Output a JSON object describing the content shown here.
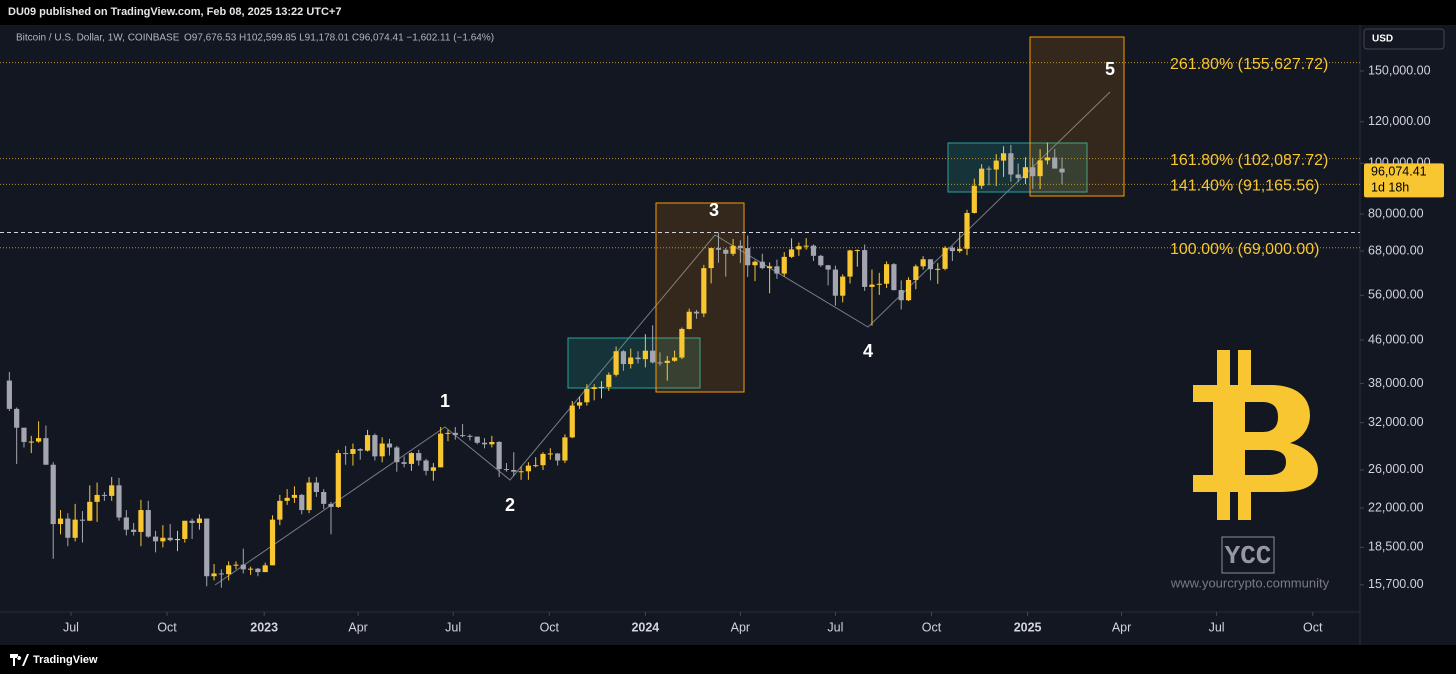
{
  "header": {
    "publisher": "DU09 published on TradingView.com, Feb 08, 2025 13:22 UTC+7"
  },
  "chart_data": {
    "type": "candlestick",
    "symbol": "Bitcoin / U.S. Dollar, 1W, COINBASE",
    "ohlc_text": "O97,676.53 H102,599.85 L91,178.01 C96,074.41 −1,602.11 (−1.64%)",
    "currency": "USD",
    "log_scale": true,
    "grid": false,
    "up_color": "#f7c631",
    "down_color": "#a3a6af",
    "open": [
      38500,
      34000,
      31300,
      29400,
      29450,
      29900,
      26600,
      20500,
      21000,
      19300,
      20900,
      20800,
      22600,
      23300,
      23200,
      24300,
      21100,
      20000,
      19800,
      21800,
      19400,
      19000,
      19300,
      19100,
      19200,
      20800,
      20600,
      21000,
      16300,
      16500,
      16450,
      17100,
      17150,
      16800,
      16850,
      16600,
      17100,
      20900,
      22700,
      23000,
      23300,
      21800,
      24600,
      23600,
      22400,
      22100,
      28000,
      27900,
      28500,
      28300,
      30300,
      27600,
      29200,
      28700,
      26900,
      26700,
      28000,
      27100,
      25900,
      26300,
      30500,
      30600,
      30300,
      30200,
      30100,
      29300,
      29100,
      29400,
      26100,
      26000,
      25800,
      25850,
      26500,
      26550,
      27900,
      27950,
      27100,
      30000,
      34500,
      35000,
      37100,
      37400,
      37450,
      39500,
      43800,
      41400,
      42600,
      42300,
      43900,
      41700,
      41600,
      42000,
      42600,
      48300,
      52100,
      51700,
      63100,
      68900,
      68400,
      67200,
      69600,
      68900,
      63900,
      64900,
      63100,
      63600,
      61600,
      66300,
      68500,
      69500,
      69650,
      66600,
      63900,
      62700,
      55900,
      60800,
      68200,
      68300,
      58100,
      58700,
      58900,
      64200,
      57300,
      54800,
      59900,
      63600,
      65600,
      62800,
      62900,
      69000,
      68000,
      68700,
      80400,
      90600,
      97700,
      97300,
      101200,
      104500,
      95200,
      93700,
      98300,
      94500,
      101300,
      102600,
      97676.53
    ],
    "high": [
      40000,
      34200,
      31300,
      30200,
      32200,
      31600,
      26900,
      21800,
      21500,
      22400,
      21700,
      24300,
      24600,
      23600,
      25200,
      25100,
      21800,
      20600,
      22800,
      22700,
      19900,
      20400,
      20500,
      19900,
      19700,
      21000,
      21400,
      21000,
      17200,
      16800,
      17400,
      17400,
      18400,
      17000,
      16900,
      17300,
      21300,
      23300,
      23900,
      24200,
      23400,
      25200,
      25200,
      23900,
      22600,
      28400,
      28900,
      29200,
      28600,
      31000,
      30500,
      30000,
      29800,
      28900,
      27600,
      28100,
      28400,
      27300,
      26800,
      31400,
      31000,
      31400,
      31800,
      30400,
      30100,
      29900,
      30200,
      29500,
      26800,
      28100,
      26400,
      26900,
      27500,
      28100,
      28600,
      28000,
      30400,
      35200,
      35900,
      37900,
      37900,
      38400,
      39900,
      44700,
      44000,
      44300,
      43800,
      47200,
      49100,
      43600,
      42900,
      43900,
      48600,
      52800,
      52500,
      64000,
      69000,
      73800,
      68900,
      71700,
      71300,
      72800,
      65300,
      67200,
      64700,
      65500,
      67700,
      71900,
      70600,
      72000,
      70000,
      66900,
      64000,
      63800,
      61400,
      68400,
      68500,
      70000,
      62700,
      61800,
      65000,
      64500,
      59800,
      60600,
      64100,
      66500,
      65600,
      64500,
      69500,
      69500,
      73600,
      81500,
      93500,
      99600,
      98700,
      104100,
      107800,
      108400,
      99900,
      102700,
      102500,
      106400,
      109600,
      106500,
      102599.85
    ],
    "low": [
      33700,
      26700,
      28700,
      28000,
      29300,
      26600,
      17600,
      19600,
      18600,
      19000,
      18900,
      20800,
      20700,
      22700,
      22700,
      20800,
      19500,
      19500,
      18600,
      19300,
      18100,
      18500,
      19000,
      18200,
      18900,
      19200,
      20000,
      15600,
      16000,
      15500,
      16000,
      16800,
      16500,
      16400,
      16300,
      16600,
      17100,
      20400,
      22300,
      22500,
      21400,
      21500,
      23100,
      21900,
      19600,
      22000,
      26600,
      26500,
      27200,
      28200,
      27100,
      26900,
      27700,
      25800,
      26300,
      25900,
      26500,
      25400,
      24800,
      26300,
      29500,
      29700,
      30000,
      29600,
      29100,
      28600,
      28700,
      25200,
      25800,
      25300,
      24900,
      24900,
      26300,
      26000,
      27200,
      26500,
      26800,
      29900,
      34000,
      34500,
      35300,
      35600,
      36800,
      39200,
      40200,
      40600,
      41500,
      40800,
      41500,
      41100,
      38500,
      41800,
      42300,
      48200,
      50500,
      50900,
      59000,
      64600,
      60800,
      66600,
      64500,
      60700,
      59600,
      62800,
      56500,
      60200,
      60800,
      66000,
      66600,
      68400,
      65100,
      63400,
      58500,
      53500,
      54300,
      59000,
      63500,
      57100,
      49000,
      56100,
      57800,
      57200,
      52600,
      54600,
      57500,
      62700,
      59800,
      58900,
      62500,
      65100,
      67500,
      66800,
      80200,
      89400,
      90800,
      90500,
      94200,
      92200,
      92000,
      91300,
      89300,
      89300,
      99500,
      97800,
      91178.01
    ],
    "close": [
      34000,
      31300,
      29400,
      29450,
      29900,
      26600,
      20500,
      21000,
      19300,
      20900,
      20800,
      22600,
      23300,
      23200,
      24300,
      21100,
      20000,
      19800,
      21800,
      19400,
      19000,
      19300,
      19100,
      19200,
      20800,
      20600,
      21000,
      16300,
      16500,
      16450,
      17100,
      17150,
      16800,
      16850,
      16600,
      17100,
      20900,
      22700,
      23000,
      23300,
      21800,
      24600,
      23600,
      22400,
      22100,
      28000,
      27900,
      28500,
      28300,
      30300,
      27600,
      29200,
      28700,
      26900,
      26700,
      28000,
      27100,
      25900,
      26300,
      30500,
      30600,
      30300,
      30200,
      30100,
      29300,
      29100,
      29400,
      26100,
      26000,
      25800,
      25850,
      26500,
      26550,
      27900,
      27950,
      27100,
      30000,
      34500,
      35000,
      37100,
      37400,
      37450,
      39500,
      43800,
      41400,
      42600,
      42300,
      43900,
      41700,
      41600,
      42000,
      42600,
      48300,
      52100,
      51700,
      63100,
      68900,
      68400,
      67200,
      69600,
      68900,
      63900,
      64900,
      63100,
      63600,
      61600,
      66300,
      68500,
      69500,
      69650,
      66600,
      63900,
      62700,
      55900,
      60800,
      68200,
      68300,
      58100,
      58700,
      58900,
      64200,
      57300,
      54800,
      59900,
      63600,
      65600,
      62800,
      62900,
      69000,
      68000,
      68700,
      80400,
      90600,
      97700,
      97300,
      101200,
      104500,
      95200,
      93700,
      98300,
      94500,
      101300,
      102600,
      97700,
      96074.41
    ],
    "xlim": [
      -1.28,
      184.76
    ],
    "xticks": [
      {
        "value": 8.43,
        "label": "Jul"
      },
      {
        "value": 21.57,
        "label": "Oct"
      },
      {
        "value": 34.86,
        "label": "2023"
      },
      {
        "value": 47.71,
        "label": "Apr"
      },
      {
        "value": 60.71,
        "label": "Jul"
      },
      {
        "value": 73.86,
        "label": "Oct"
      },
      {
        "value": 87.0,
        "label": "2024"
      },
      {
        "value": 100.0,
        "label": "Apr"
      },
      {
        "value": 113.0,
        "label": "Jul"
      },
      {
        "value": 126.14,
        "label": "Oct"
      },
      {
        "value": 139.29,
        "label": "2025"
      },
      {
        "value": 152.14,
        "label": "Apr"
      },
      {
        "value": 165.14,
        "label": "Jul"
      },
      {
        "value": 178.29,
        "label": "Oct"
      }
    ],
    "ylim": [
      13930,
      183600
    ],
    "yticks": [
      {
        "value": 150000,
        "label": "150,000.00"
      },
      {
        "value": 120000,
        "label": "120,000.00"
      },
      {
        "value": 100000,
        "label": "100,000.00"
      },
      {
        "value": 80000,
        "label": "80,000.00"
      },
      {
        "value": 68000,
        "label": "68,000.00"
      },
      {
        "value": 56000,
        "label": "56,000.00"
      },
      {
        "value": 46000,
        "label": "46,000.00"
      },
      {
        "value": 38000,
        "label": "38,000.00"
      },
      {
        "value": 32000,
        "label": "32,000.00"
      },
      {
        "value": 26000,
        "label": "26,000.00"
      },
      {
        "value": 22000,
        "label": "22,000.00"
      },
      {
        "value": 18500,
        "label": "18,500.00"
      },
      {
        "value": 15700,
        "label": "15,700.00"
      }
    ],
    "last_price": {
      "value": 96074.41,
      "label": "96,074.41"
    },
    "countdown": "1d 18h",
    "fib_levels": [
      {
        "value": 155627.72,
        "label": "261.80% (155,627.72)"
      },
      {
        "value": 102087.72,
        "label": "161.80% (102,087.72)"
      },
      {
        "value": 91165.56,
        "label": "141.40% (91,165.56)"
      },
      {
        "value": 69000,
        "label": "100.00% (69,000.00)"
      }
    ],
    "dashed_level": 73800,
    "wave_labels": [
      "1",
      "2",
      "3",
      "4",
      "5"
    ]
  },
  "watermark": {
    "logo": "YCC",
    "url": "www.yourcrypto.community"
  },
  "footer": {
    "brand": "TradingView"
  }
}
